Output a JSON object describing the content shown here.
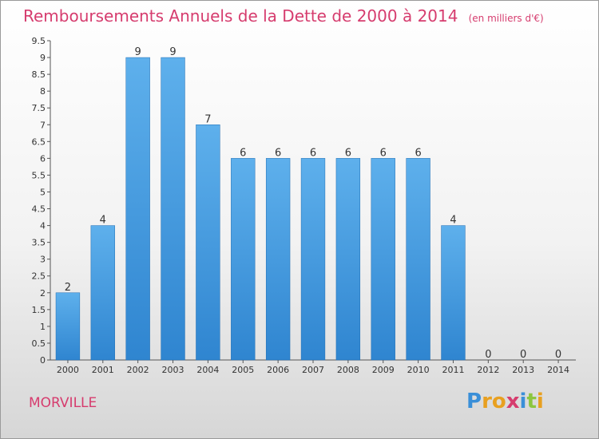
{
  "title": "Remboursements Annuels de la Dette de 2000 à 2014",
  "unit": "(en milliers d'€)",
  "place": "MORVILLE",
  "brand": {
    "letters": [
      "P",
      "r",
      "o",
      "x",
      "i",
      "t",
      "i"
    ],
    "colors": [
      "#3a8fd8",
      "#e8a020",
      "#e8a020",
      "#d63c6e",
      "#3a8fd8",
      "#8cc63f",
      "#e8a020"
    ]
  },
  "colors": {
    "bar": "#2f85d0",
    "bar_light": "#5eb0ec",
    "text": "#d63c6e"
  },
  "chart_data": {
    "type": "bar",
    "categories": [
      "2000",
      "2001",
      "2002",
      "2003",
      "2004",
      "2005",
      "2006",
      "2007",
      "2008",
      "2009",
      "2010",
      "2011",
      "2012",
      "2013",
      "2014"
    ],
    "values": [
      2,
      4,
      9,
      9,
      7,
      6,
      6,
      6,
      6,
      6,
      6,
      4,
      0,
      0,
      0
    ],
    "data_labels": [
      "2",
      "4",
      "9",
      "9",
      "7",
      "6",
      "6",
      "6",
      "6",
      "6",
      "6",
      "4",
      "0",
      "0",
      "0"
    ],
    "y_ticks": [
      0,
      0.5,
      1,
      1.5,
      2,
      2.5,
      3,
      3.5,
      4,
      4.5,
      5,
      5.5,
      6,
      6.5,
      7,
      7.5,
      8,
      8.5,
      9,
      9.5
    ],
    "y_tick_labels": [
      "0",
      "0.5",
      "1",
      "1.5",
      "2",
      "2.5",
      "3",
      "3.5",
      "4",
      "4.5",
      "5",
      "5.5",
      "6",
      "6.5",
      "7",
      "7.5",
      "8",
      "8.5",
      "9",
      "9.5"
    ],
    "ylim": [
      0,
      9.5
    ],
    "grid": false
  }
}
